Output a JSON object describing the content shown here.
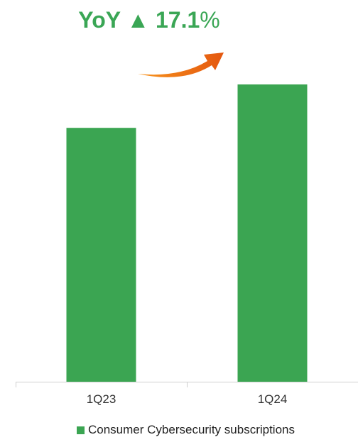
{
  "annotation": {
    "yoy_label": "YoY",
    "triangle_glyph": "▲",
    "yoy_value": "17.1",
    "percent_sign": "%",
    "color": "#3aa655",
    "arrow_icon": "curved-orange-arrow"
  },
  "colors": {
    "bar": "#3ba552",
    "axis": "#cfcfcf",
    "arrow_start": "#f7941d",
    "arrow_end": "#e4570f"
  },
  "chart_data": {
    "type": "bar",
    "categories": [
      "1Q23",
      "1Q24"
    ],
    "series": [
      {
        "name": "Consumer Cybersecurity subscriptions",
        "values": [
          100,
          117.1
        ]
      }
    ],
    "ylim": [
      0,
      135
    ],
    "grid": false,
    "legend_position": "bottom-left"
  }
}
